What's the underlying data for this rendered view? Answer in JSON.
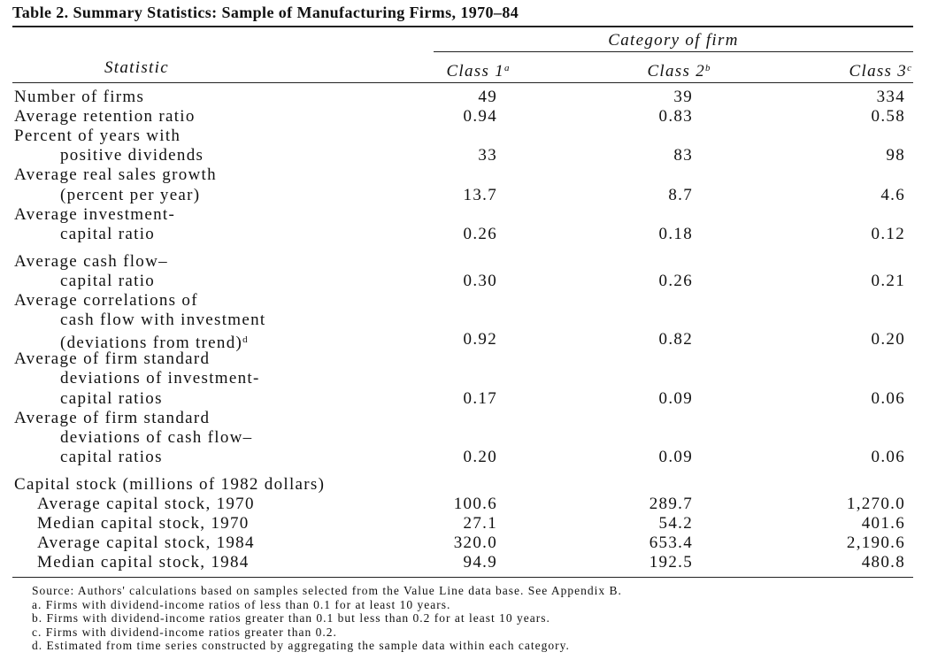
{
  "title": "Table 2. Summary Statistics: Sample of Manufacturing Firms, 1970–84",
  "header": {
    "spanner": "Category of firm",
    "columns": [
      {
        "text": "Statistic"
      },
      {
        "text": "Class 1",
        "note": "a"
      },
      {
        "text": "Class 2",
        "note": "b"
      },
      {
        "text": "Class 3",
        "note": "c"
      }
    ]
  },
  "rows": [
    {
      "label": [
        "Number of firms"
      ],
      "values": [
        "49",
        "39",
        "334"
      ]
    },
    {
      "label": [
        "Average retention ratio"
      ],
      "values": [
        "0.94",
        "0.83",
        "0.58"
      ]
    },
    {
      "label": [
        "Percent of years with",
        "positive dividends"
      ],
      "values": [
        "33",
        "83",
        "98"
      ]
    },
    {
      "label": [
        "Average real sales growth",
        "(percent per year)"
      ],
      "values": [
        "13.7",
        "8.7",
        "4.6"
      ]
    },
    {
      "label": [
        "Average investment-",
        "capital ratio"
      ],
      "values": [
        "0.26",
        "0.18",
        "0.12"
      ]
    },
    {
      "label": [
        "Average cash flow–",
        "capital ratio"
      ],
      "values": [
        "0.30",
        "0.26",
        "0.21"
      ]
    },
    {
      "label": [
        "Average correlations of",
        "cash flow with investment",
        "(deviations from trend)"
      ],
      "note": "d",
      "values": [
        "0.92",
        "0.82",
        "0.20"
      ]
    },
    {
      "label": [
        "Average of firm standard",
        "deviations of investment-",
        "capital ratios"
      ],
      "values": [
        "0.17",
        "0.09",
        "0.06"
      ]
    },
    {
      "label": [
        "Average of firm standard",
        "deviations of cash flow–",
        "capital ratios"
      ],
      "values": [
        "0.20",
        "0.09",
        "0.06"
      ]
    }
  ],
  "capital_stock": {
    "title": "Capital stock (millions of 1982 dollars)",
    "rows": [
      {
        "label": "Average capital stock, 1970",
        "values": [
          "100.6",
          "289.7",
          "1,270.0"
        ]
      },
      {
        "label": "Median capital stock, 1970",
        "values": [
          "27.1",
          "54.2",
          "401.6"
        ]
      },
      {
        "label": "Average capital stock, 1984",
        "values": [
          "320.0",
          "653.4",
          "2,190.6"
        ]
      },
      {
        "label": "Median capital stock, 1984",
        "values": [
          "94.9",
          "192.5",
          "480.8"
        ]
      }
    ]
  },
  "notes": [
    "Source: Authors' calculations based on samples selected from the Value Line data base. See Appendix B.",
    "a. Firms with dividend-income ratios of less than 0.1 for at least 10 years.",
    "b. Firms with dividend-income ratios greater than 0.1 but less than 0.2 for at least 10 years.",
    "c. Firms with dividend-income ratios greater than 0.2.",
    "d. Estimated from time series constructed by aggregating the sample data within each category."
  ]
}
